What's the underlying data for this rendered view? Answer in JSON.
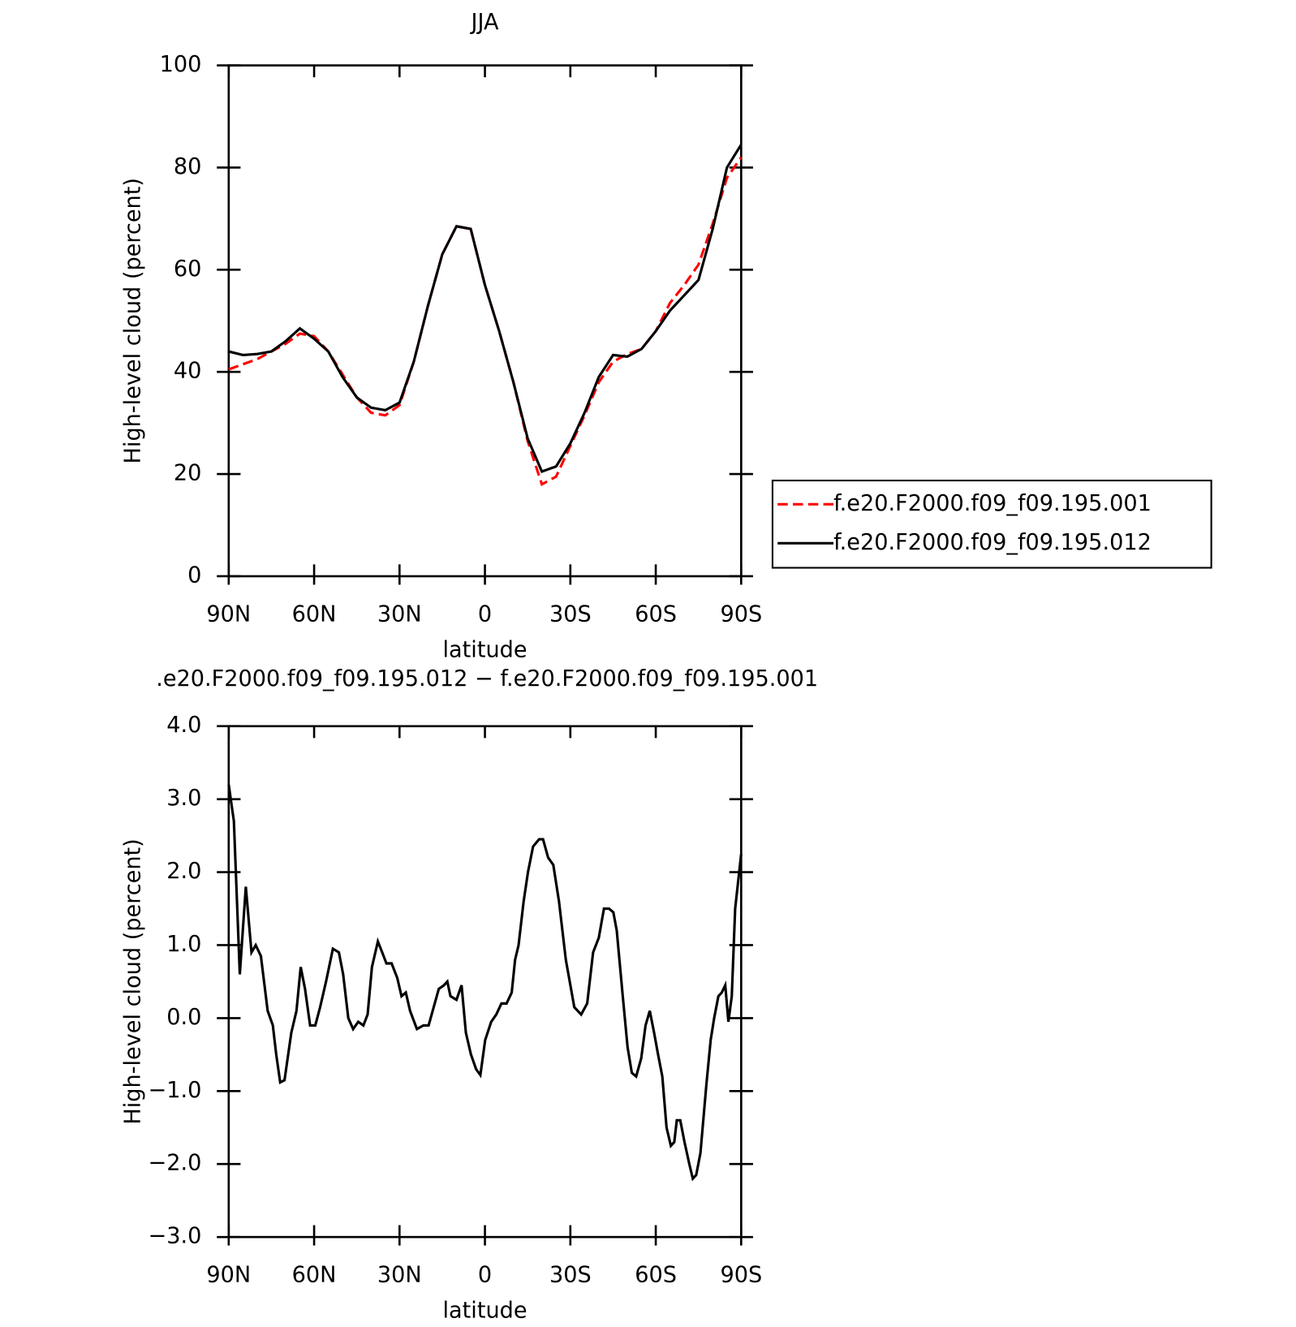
{
  "chart_data": [
    {
      "type": "line",
      "title": "JJA",
      "x_label": "latitude",
      "y_label": "High-level cloud (percent)",
      "x": [
        90,
        85,
        80,
        75,
        70,
        65,
        60,
        55,
        50,
        45,
        40,
        35,
        30,
        25,
        20,
        15,
        10,
        5,
        0,
        -5,
        -10,
        -15,
        -20,
        -25,
        -30,
        -35,
        -40,
        -45,
        -50,
        -55,
        -60,
        -65,
        -70,
        -75,
        -80,
        -85,
        -90
      ],
      "series": [
        {
          "name": "f.e20.F2000.f09_f09.195.001",
          "color": "#ff0000",
          "dash": true,
          "values": [
            40.5,
            41.5,
            42.5,
            44,
            45.5,
            47.5,
            47,
            44,
            39.5,
            35,
            32,
            31.5,
            33.5,
            42,
            53,
            63,
            68.5,
            68,
            57,
            48,
            38,
            26.5,
            18,
            19.5,
            25.5,
            31.5,
            38,
            42,
            43.5,
            44.5,
            48,
            53.5,
            57,
            61,
            69,
            78,
            82
          ]
        },
        {
          "name": "f.e20.F2000.f09_f09.195.012",
          "color": "#000000",
          "dash": false,
          "values": [
            44,
            43.3,
            43.5,
            44,
            46,
            48.5,
            46.5,
            44,
            39,
            35,
            33,
            32.5,
            34,
            42,
            53,
            63,
            68.5,
            68,
            57,
            48,
            38,
            27,
            20.5,
            21.5,
            26,
            32,
            39,
            43.3,
            43,
            44.5,
            48,
            52,
            55,
            58,
            68,
            80,
            84.5
          ]
        }
      ],
      "xlim": [
        90,
        -90
      ],
      "xticks": [
        {
          "value": 90,
          "label": "90N"
        },
        {
          "value": 60,
          "label": "60N"
        },
        {
          "value": 30,
          "label": "30N"
        },
        0,
        {
          "value": -30,
          "label": "30S"
        },
        {
          "value": -60,
          "label": "60S"
        },
        {
          "value": -90,
          "label": "90S"
        }
      ],
      "ylim": [
        0,
        100
      ],
      "yticks": [
        0,
        20,
        40,
        60,
        80,
        100
      ],
      "legend": "right"
    },
    {
      "type": "line",
      "title": ".e20.F2000.f09_f09.195.012 − f.e20.F2000.f09_f09.195.001",
      "x_label": "latitude",
      "y_label": "High-level cloud (percent)",
      "x": [
        90,
        88.2,
        86.1,
        84.0,
        82.0,
        80.5,
        78.7,
        76.3,
        74.5,
        73.3,
        71.9,
        70.4,
        68.0,
        66.2,
        64.7,
        63.2,
        61.4,
        59.6,
        57.9,
        55.8,
        53.4,
        51.3,
        49.8,
        48.0,
        46.3,
        44.5,
        42.7,
        41.2,
        39.7,
        37.6,
        36.1,
        34.6,
        32.8,
        30.8,
        29.3,
        27.8,
        26.3,
        23.9,
        21.6,
        19.8,
        18.0,
        16.2,
        14.4,
        13.2,
        12.1,
        10.0,
        8.2,
        6.7,
        4.9,
        3.1,
        1.6,
        -0.1,
        -2.2,
        -4.0,
        -5.8,
        -7.6,
        -9.4,
        -10.6,
        -11.8,
        -13.6,
        -15.1,
        -16.9,
        -19.0,
        -20.4,
        -22.2,
        -24.0,
        -26.0,
        -28.4,
        -31.4,
        -33.8,
        -35.9,
        -38.0,
        -40.0,
        -41.8,
        -43.6,
        -45.1,
        -46.3,
        -48.4,
        -50.1,
        -51.6,
        -53.1,
        -54.9,
        -56.4,
        -57.9,
        -59.4,
        -60.8,
        -62.3,
        -63.8,
        -65.3,
        -66.5,
        -67.4,
        -68.6,
        -70.1,
        -71.8,
        -73.0,
        -74.2,
        -75.7,
        -77.8,
        -79.3,
        -80.5,
        -82.0,
        -83.2,
        -84.4,
        -85.5,
        -86.7,
        -87.9,
        -90
      ],
      "series": [
        {
          "color": "#000000",
          "dash": false,
          "values": [
            3.2,
            2.7,
            0.6,
            1.8,
            0.9,
            1.0,
            0.85,
            0.1,
            -0.1,
            -0.5,
            -0.88,
            -0.85,
            -0.2,
            0.1,
            0.7,
            0.4,
            -0.1,
            -0.1,
            0.15,
            0.5,
            0.95,
            0.9,
            0.6,
            0.0,
            -0.15,
            -0.05,
            -0.1,
            0.05,
            0.7,
            1.05,
            0.9,
            0.75,
            0.75,
            0.55,
            0.3,
            0.35,
            0.1,
            -0.15,
            -0.1,
            -0.1,
            0.15,
            0.4,
            0.45,
            0.5,
            0.3,
            0.25,
            0.45,
            -0.2,
            -0.5,
            -0.7,
            -0.78,
            -0.3,
            -0.05,
            0.05,
            0.2,
            0.2,
            0.35,
            0.8,
            1.0,
            1.6,
            2.0,
            2.35,
            2.45,
            2.45,
            2.2,
            2.1,
            1.6,
            0.8,
            0.15,
            0.05,
            0.2,
            0.9,
            1.1,
            1.5,
            1.5,
            1.45,
            1.2,
            0.3,
            -0.4,
            -0.75,
            -0.8,
            -0.55,
            -0.1,
            0.1,
            -0.2,
            -0.5,
            -0.8,
            -1.5,
            -1.75,
            -1.7,
            -1.4,
            -1.4,
            -1.7,
            -2.0,
            -2.2,
            -2.15,
            -1.85,
            -0.9,
            -0.3,
            0.0,
            0.3,
            0.35,
            0.45,
            -0.05,
            0.3,
            1.5,
            2.25
          ]
        }
      ],
      "xlim": [
        90,
        -90
      ],
      "xticks": [
        {
          "value": 90,
          "label": "90N"
        },
        {
          "value": 60,
          "label": "60N"
        },
        {
          "value": 30,
          "label": "30N"
        },
        0,
        {
          "value": -30,
          "label": "30S"
        },
        {
          "value": -60,
          "label": "60S"
        },
        {
          "value": -90,
          "label": "90S"
        }
      ],
      "ylim": [
        -3,
        4
      ],
      "yticks": [
        {
          "value": -3,
          "label": "−3.0"
        },
        {
          "value": -2,
          "label": "−2.0"
        },
        {
          "value": -1,
          "label": "−1.0"
        },
        {
          "value": 0,
          "label": "0.0"
        },
        {
          "value": 1,
          "label": "1.0"
        },
        {
          "value": 2,
          "label": "2.0"
        },
        {
          "value": 3,
          "label": "3.0"
        },
        {
          "value": 4,
          "label": "4.0"
        }
      ]
    }
  ]
}
